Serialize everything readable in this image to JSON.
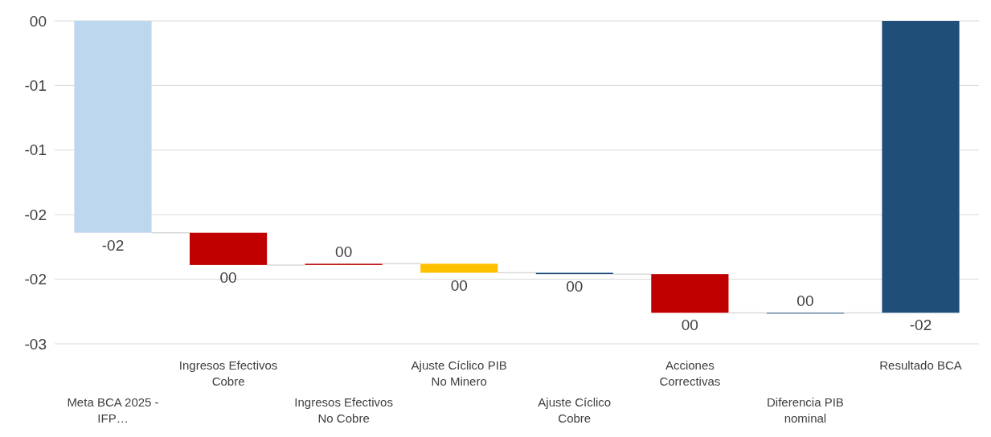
{
  "chart_data": {
    "type": "bar",
    "categories": [
      "Meta BCA 2025 - IFP…",
      "Ingresos Efectivos Cobre",
      "Ingresos Efectivos No Cobre",
      "Ajuste Cíclico PIB No Minero",
      "Ajuste Cíclico Cobre",
      "Acciones Correctivas",
      "Diferencia PIB nominal",
      "Resultado BCA"
    ],
    "values": [
      -1.64,
      -0.25,
      0.01,
      -0.07,
      -0.01,
      -0.3,
      0,
      -2.26
    ],
    "base": [
      0,
      -1.64,
      -1.89,
      -1.88,
      -1.95,
      -1.96,
      -2.26,
      0
    ],
    "colors": [
      "#bdd7ee",
      "#c00000",
      "#c00000",
      "#ffc000",
      "#1f4e79",
      "#c00000",
      "#1f4e79",
      "#1f4e79"
    ],
    "value_labels": [
      "-02",
      "00",
      "00",
      "00",
      "00",
      "00",
      "00",
      "-02"
    ],
    "ylim": [
      -2.5,
      0
    ],
    "yticks": [
      {
        "value": 0,
        "label": "00"
      },
      {
        "value": -0.5,
        "label": "-01"
      },
      {
        "value": -1,
        "label": "-01"
      },
      {
        "value": -1.5,
        "label": "-02"
      },
      {
        "value": -2,
        "label": "-02"
      },
      {
        "value": -2.5,
        "label": "-03"
      }
    ],
    "grid": "y"
  }
}
